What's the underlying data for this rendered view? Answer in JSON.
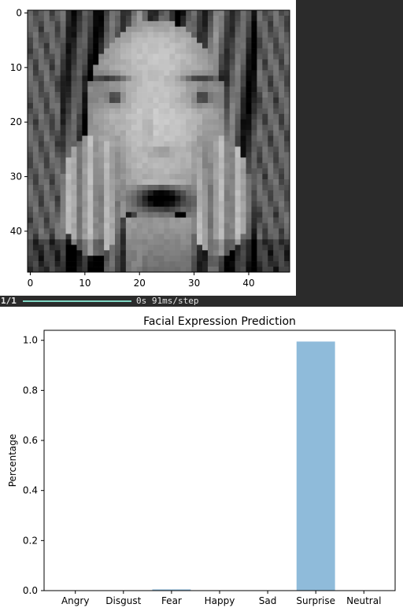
{
  "chart_data": [
    {
      "type": "heatmap",
      "colormap": "gray",
      "grid": false,
      "xlim": [
        -0.5,
        47.5
      ],
      "ylim": [
        47.5,
        -0.5
      ],
      "x_ticks": [
        0,
        10,
        20,
        30,
        40
      ],
      "y_ticks": [
        0,
        10,
        20,
        30,
        40
      ]
    },
    {
      "type": "bar",
      "title": "Facial Expression Prediction",
      "xlabel": "",
      "ylabel": "Percentage",
      "categories": [
        "Angry",
        "Disgust",
        "Fear",
        "Happy",
        "Sad",
        "Surprise",
        "Neutral"
      ],
      "values": [
        0.0,
        0.0,
        0.005,
        0.0,
        0.0,
        0.995,
        0.0
      ],
      "ylim": [
        0,
        1.04
      ],
      "y_ticks": [
        0.0,
        0.2,
        0.4,
        0.6,
        0.8,
        1.0
      ],
      "bar_color": "#8fbbda",
      "grid": false
    }
  ],
  "progress": {
    "step_label": "1/1",
    "time_label": "0s 91ms/step",
    "bar_color": "#7fd7c4"
  }
}
